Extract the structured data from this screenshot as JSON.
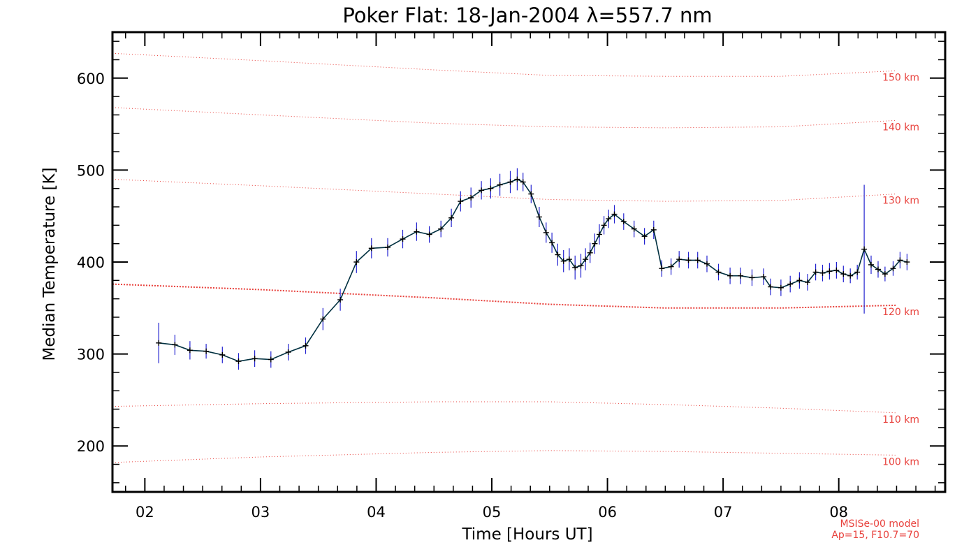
{
  "chart_data": {
    "type": "line",
    "title": "Poker Flat: 18-Jan-2004 λ=557.7 nm",
    "xlabel": "Time [Hours UT]",
    "ylabel": "Median Temperature [K]",
    "xlim": [
      1.72,
      8.92
    ],
    "ylim": [
      150,
      650
    ],
    "x_ticks": [
      2,
      3,
      4,
      5,
      6,
      7,
      8
    ],
    "x_tick_labels": [
      "02",
      "03",
      "04",
      "05",
      "06",
      "07",
      "08"
    ],
    "y_ticks": [
      200,
      300,
      400,
      500,
      600
    ],
    "y_tick_labels": [
      "200",
      "300",
      "400",
      "500",
      "600"
    ],
    "grid": false,
    "colors": {
      "data_line": "#003040",
      "error_bar": "#2323d0",
      "marker": "#000000",
      "reference": "#e8413c",
      "axes": "#000000"
    },
    "series": [
      {
        "name": "Median Temperature",
        "x": [
          2.12,
          2.26,
          2.39,
          2.53,
          2.67,
          2.81,
          2.95,
          3.09,
          3.24,
          3.39,
          3.54,
          3.69,
          3.83,
          3.96,
          4.1,
          4.23,
          4.35,
          4.46,
          4.56,
          4.65,
          4.73,
          4.82,
          4.91,
          4.99,
          5.07,
          5.16,
          5.22,
          5.27,
          5.34,
          5.41,
          5.47,
          5.52,
          5.57,
          5.62,
          5.67,
          5.72,
          5.77,
          5.81,
          5.85,
          5.89,
          5.93,
          5.97,
          6.01,
          6.06,
          6.14,
          6.23,
          6.32,
          6.4,
          6.47,
          6.55,
          6.62,
          6.7,
          6.78,
          6.86,
          6.96,
          7.06,
          7.15,
          7.25,
          7.35,
          7.41,
          7.5,
          7.58,
          7.66,
          7.73,
          7.8,
          7.86,
          7.92,
          7.98,
          8.04,
          8.1,
          8.16,
          8.22,
          8.28,
          8.34,
          8.4,
          8.47,
          8.53,
          8.59
        ],
        "values": [
          312,
          310,
          304,
          303,
          299,
          292,
          295,
          294,
          302,
          309,
          338,
          359,
          400,
          415,
          416,
          425,
          433,
          430,
          436,
          448,
          466,
          470,
          478,
          480,
          484,
          487,
          490,
          487,
          474,
          449,
          432,
          421,
          408,
          401,
          403,
          394,
          396,
          403,
          410,
          420,
          430,
          440,
          447,
          452,
          444,
          436,
          428,
          435,
          393,
          395,
          403,
          402,
          402,
          398,
          389,
          385,
          385,
          383,
          384,
          373,
          372,
          376,
          380,
          378,
          389,
          388,
          390,
          391,
          387,
          385,
          389,
          414,
          397,
          392,
          387,
          393,
          402,
          400
        ],
        "errors": [
          22,
          11,
          10,
          8,
          9,
          9,
          9,
          9,
          9,
          9,
          12,
          12,
          12,
          11,
          10,
          10,
          10,
          9,
          9,
          10,
          11,
          11,
          10,
          11,
          12,
          12,
          12,
          10,
          10,
          11,
          11,
          11,
          12,
          12,
          12,
          13,
          13,
          12,
          11,
          11,
          11,
          10,
          10,
          10,
          9,
          9,
          9,
          10,
          9,
          9,
          9,
          9,
          9,
          9,
          9,
          9,
          9,
          9,
          9,
          9,
          9,
          9,
          9,
          9,
          9,
          9,
          9,
          9,
          9,
          8,
          8,
          70,
          10,
          9,
          8,
          8,
          9,
          9
        ]
      }
    ],
    "reference_curves": [
      {
        "label": "150 km",
        "x": [
          1.72,
          3.0,
          4.5,
          5.5,
          6.5,
          7.5,
          8.5
        ],
        "values": [
          627,
          619,
          609,
          603,
          602,
          602,
          608
        ]
      },
      {
        "label": "140 km",
        "x": [
          1.72,
          3.0,
          4.5,
          5.5,
          6.5,
          7.5,
          8.5
        ],
        "values": [
          568,
          560,
          551,
          547,
          546,
          547,
          554
        ]
      },
      {
        "label": "130 km",
        "x": [
          1.72,
          3.0,
          4.5,
          5.5,
          6.5,
          7.5,
          8.5
        ],
        "values": [
          490,
          483,
          474,
          468,
          466,
          467,
          474
        ]
      },
      {
        "label": "120 km",
        "x": [
          1.72,
          3.0,
          4.5,
          5.5,
          6.5,
          7.5,
          8.5
        ],
        "values": [
          376,
          370,
          361,
          354,
          350,
          350,
          353
        ],
        "emphasized": true
      },
      {
        "label": "110 km",
        "x": [
          1.72,
          3.0,
          4.5,
          5.5,
          6.5,
          7.5,
          8.5
        ],
        "values": [
          243,
          246,
          248,
          248,
          245,
          241,
          236
        ]
      },
      {
        "label": "100 km",
        "x": [
          1.72,
          3.0,
          4.5,
          5.5,
          6.5,
          7.5,
          8.5
        ],
        "values": [
          182,
          188,
          193,
          195,
          194,
          192,
          190
        ]
      }
    ],
    "annotations": [
      "MSISe-00 model",
      "Ap=15, F10.7=70"
    ]
  }
}
